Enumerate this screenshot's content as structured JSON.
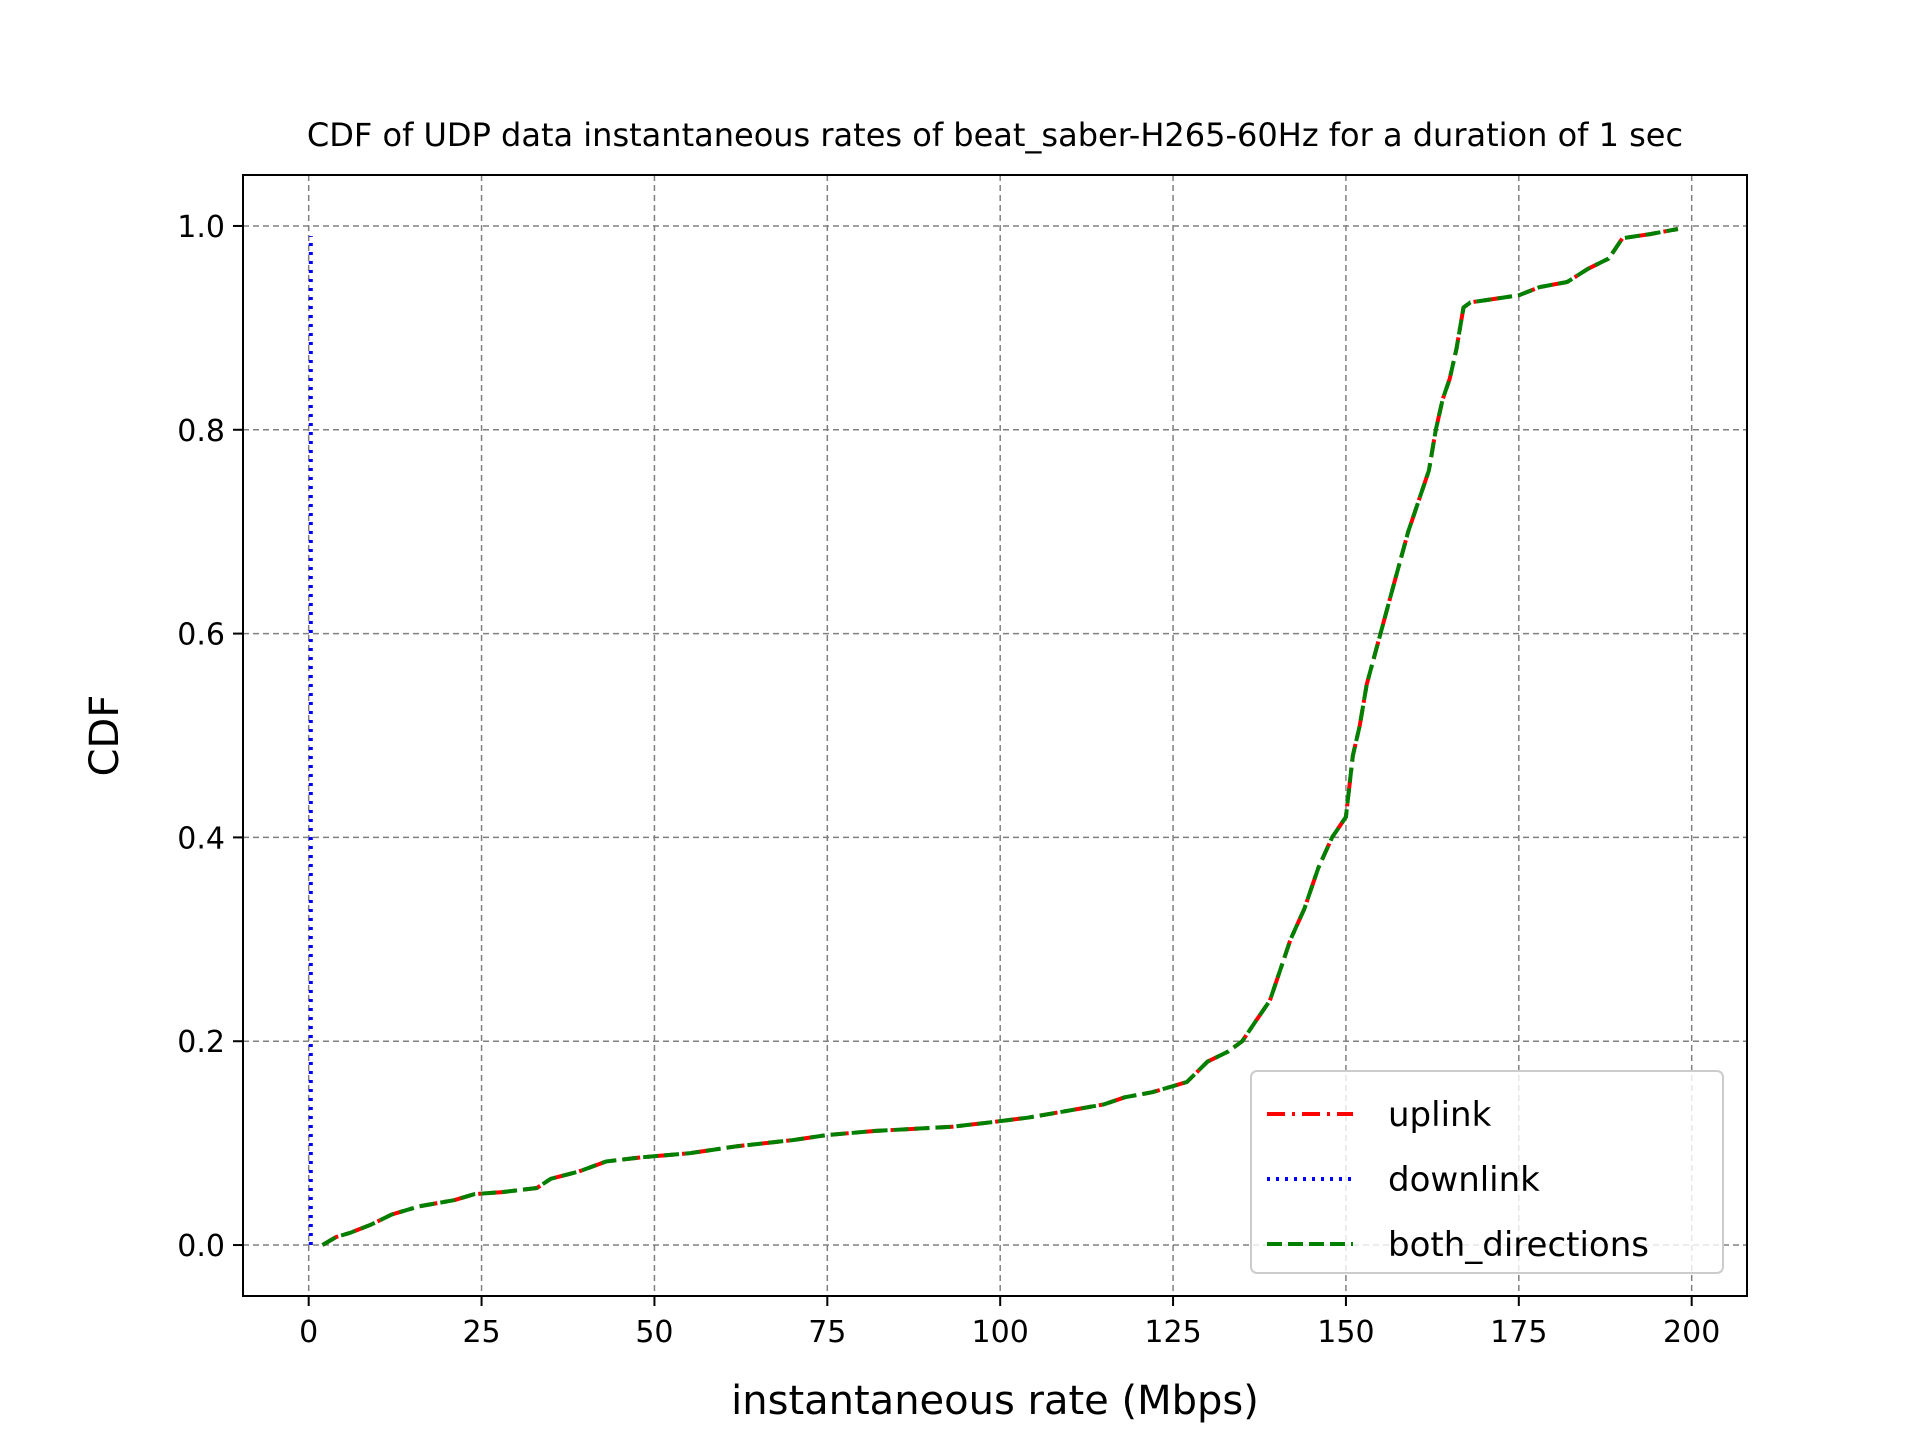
{
  "chart_data": {
    "type": "line",
    "title": "CDF of UDP data instantaneous rates of beat_saber-H265-60Hz for a duration of 1 sec",
    "xlabel": "instantaneous rate (Mbps)",
    "ylabel": "CDF",
    "xlim": [
      -9.5,
      208
    ],
    "ylim": [
      -0.05,
      1.05
    ],
    "xticks": [
      0,
      25,
      50,
      75,
      100,
      125,
      150,
      175,
      200
    ],
    "yticks": [
      0.0,
      0.2,
      0.4,
      0.6,
      0.8,
      1.0
    ],
    "xtick_labels": [
      "0",
      "25",
      "50",
      "75",
      "100",
      "125",
      "150",
      "175",
      "200"
    ],
    "ytick_labels": [
      "0.0",
      "0.2",
      "0.4",
      "0.6",
      "0.8",
      "1.0"
    ],
    "grid": true,
    "legend_position": "lower-right",
    "series": [
      {
        "name": "uplink",
        "color": "#ff0000",
        "style": "dashdot",
        "x": [
          2,
          4,
          6,
          9,
          12,
          16,
          21,
          24,
          28,
          33,
          35,
          39,
          43,
          48,
          55,
          62,
          70,
          75,
          82,
          93,
          98,
          104,
          110,
          115,
          118,
          122,
          127,
          130,
          133,
          135,
          137,
          139,
          140,
          142,
          144,
          146,
          148,
          150,
          151,
          152,
          153,
          155,
          157,
          159,
          161,
          162,
          163,
          164,
          165,
          166,
          167,
          168,
          175,
          178,
          182,
          185,
          188,
          190,
          194,
          198
        ],
        "y": [
          0.0,
          0.008,
          0.012,
          0.02,
          0.03,
          0.038,
          0.044,
          0.05,
          0.052,
          0.056,
          0.065,
          0.072,
          0.082,
          0.086,
          0.09,
          0.097,
          0.103,
          0.108,
          0.112,
          0.116,
          0.12,
          0.125,
          0.132,
          0.138,
          0.145,
          0.15,
          0.16,
          0.18,
          0.19,
          0.2,
          0.22,
          0.24,
          0.26,
          0.3,
          0.33,
          0.37,
          0.4,
          0.42,
          0.48,
          0.51,
          0.55,
          0.6,
          0.65,
          0.7,
          0.74,
          0.76,
          0.8,
          0.83,
          0.85,
          0.88,
          0.92,
          0.925,
          0.932,
          0.94,
          0.945,
          0.958,
          0.968,
          0.988,
          0.992,
          0.997
        ]
      },
      {
        "name": "downlink",
        "color": "#0000ff",
        "style": "dotted",
        "x": [
          0.3,
          0.3
        ],
        "y": [
          0.0,
          0.99
        ]
      },
      {
        "name": "both_directions",
        "color": "#008000",
        "style": "dashed",
        "x": [
          2,
          4,
          6,
          9,
          12,
          16,
          21,
          24,
          28,
          33,
          35,
          39,
          43,
          48,
          55,
          62,
          70,
          75,
          82,
          93,
          98,
          104,
          110,
          115,
          118,
          122,
          127,
          130,
          133,
          135,
          137,
          139,
          140,
          142,
          144,
          146,
          148,
          150,
          151,
          152,
          153,
          155,
          157,
          159,
          161,
          162,
          163,
          164,
          165,
          166,
          167,
          168,
          175,
          178,
          182,
          185,
          188,
          190,
          194,
          198
        ],
        "y": [
          0.0,
          0.008,
          0.012,
          0.02,
          0.03,
          0.038,
          0.044,
          0.05,
          0.052,
          0.056,
          0.065,
          0.072,
          0.082,
          0.086,
          0.09,
          0.097,
          0.103,
          0.108,
          0.112,
          0.116,
          0.12,
          0.125,
          0.132,
          0.138,
          0.145,
          0.15,
          0.16,
          0.18,
          0.19,
          0.2,
          0.22,
          0.24,
          0.26,
          0.3,
          0.33,
          0.37,
          0.4,
          0.42,
          0.48,
          0.51,
          0.55,
          0.6,
          0.65,
          0.7,
          0.74,
          0.76,
          0.8,
          0.83,
          0.85,
          0.88,
          0.92,
          0.925,
          0.932,
          0.94,
          0.945,
          0.958,
          0.968,
          0.988,
          0.992,
          0.997
        ]
      }
    ]
  }
}
